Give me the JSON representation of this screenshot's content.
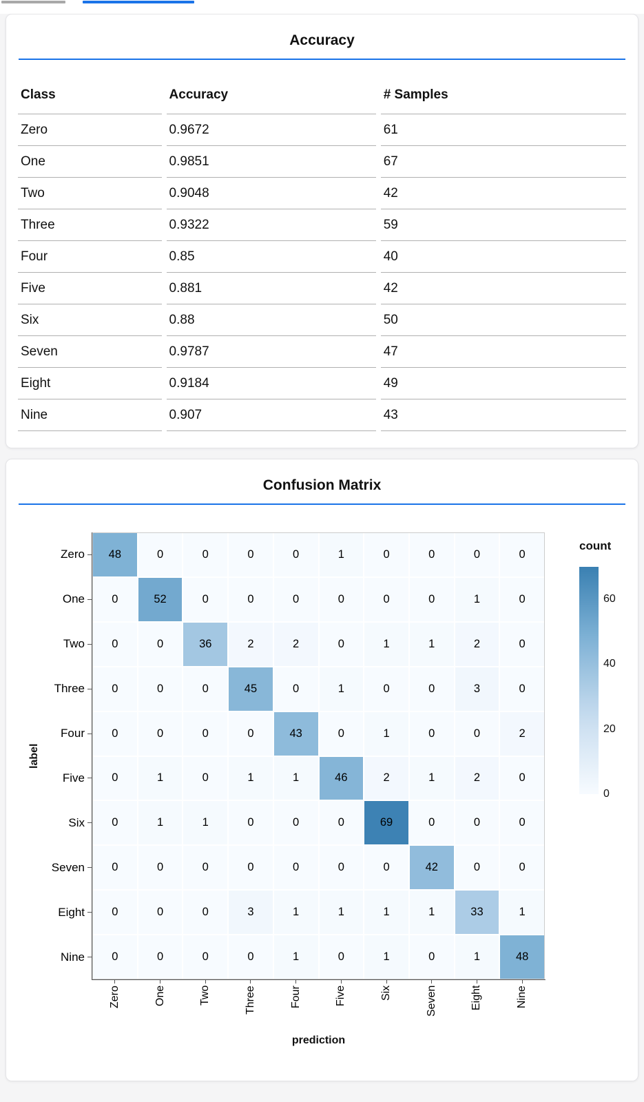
{
  "header": {
    "scrollbar": "scrollbar-thumb",
    "tab_indicator_color": "#1a73e8"
  },
  "accuracy_panel": {
    "title": "Accuracy"
  },
  "confusion_panel": {
    "title": "Confusion Matrix"
  },
  "colors": {
    "accent_blue": "#1a73e8",
    "heatmap_scale": [
      [
        0,
        [
          247,
          251,
          255
        ]
      ],
      [
        0.35,
        [
          198,
          219,
          239
        ]
      ],
      [
        0.7,
        [
          124,
          176,
          212
        ]
      ],
      [
        1,
        [
          58,
          128,
          178
        ]
      ]
    ]
  },
  "chart_data": [
    {
      "type": "table",
      "title": "Accuracy",
      "columns": [
        "Class",
        "Accuracy",
        "# Samples"
      ],
      "rows": [
        [
          "Zero",
          "0.9672",
          "61"
        ],
        [
          "One",
          "0.9851",
          "67"
        ],
        [
          "Two",
          "0.9048",
          "42"
        ],
        [
          "Three",
          "0.9322",
          "59"
        ],
        [
          "Four",
          "0.85",
          "40"
        ],
        [
          "Five",
          "0.881",
          "42"
        ],
        [
          "Six",
          "0.88",
          "50"
        ],
        [
          "Seven",
          "0.9787",
          "47"
        ],
        [
          "Eight",
          "0.9184",
          "49"
        ],
        [
          "Nine",
          "0.907",
          "43"
        ]
      ]
    },
    {
      "type": "heatmap",
      "title": "Confusion Matrix",
      "x_categories": [
        "Zero",
        "One",
        "Two",
        "Three",
        "Four",
        "Five",
        "Six",
        "Seven",
        "Eight",
        "Nine"
      ],
      "y_categories": [
        "Zero",
        "One",
        "Two",
        "Three",
        "Four",
        "Five",
        "Six",
        "Seven",
        "Eight",
        "Nine"
      ],
      "xlabel": "prediction",
      "ylabel": "label",
      "legend_title": "count",
      "legend_ticks": [
        60,
        40,
        20,
        0
      ],
      "domain": [
        0,
        70
      ],
      "matrix": [
        [
          48,
          0,
          0,
          0,
          0,
          1,
          0,
          0,
          0,
          0
        ],
        [
          0,
          52,
          0,
          0,
          0,
          0,
          0,
          0,
          1,
          0
        ],
        [
          0,
          0,
          36,
          2,
          2,
          0,
          1,
          1,
          2,
          0
        ],
        [
          0,
          0,
          0,
          45,
          0,
          1,
          0,
          0,
          3,
          0
        ],
        [
          0,
          0,
          0,
          0,
          43,
          0,
          1,
          0,
          0,
          2
        ],
        [
          0,
          1,
          0,
          1,
          1,
          46,
          2,
          1,
          2,
          0
        ],
        [
          0,
          1,
          1,
          0,
          0,
          0,
          69,
          0,
          0,
          0
        ],
        [
          0,
          0,
          0,
          0,
          0,
          0,
          0,
          42,
          0,
          0
        ],
        [
          0,
          0,
          0,
          3,
          1,
          1,
          1,
          1,
          33,
          1
        ],
        [
          0,
          0,
          0,
          0,
          1,
          0,
          1,
          0,
          1,
          48
        ]
      ]
    }
  ]
}
